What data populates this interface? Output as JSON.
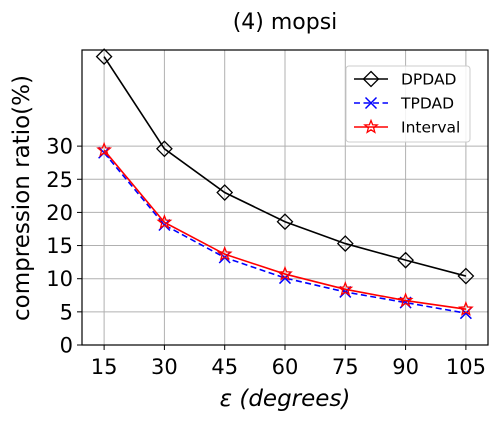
{
  "chart_data": {
    "type": "line",
    "title": "(4) mopsi",
    "xlabel": "ε (degrees)",
    "ylabel": "compression ratio(%)",
    "x": [
      15,
      30,
      45,
      60,
      75,
      90,
      105
    ],
    "xticks": [
      15,
      30,
      45,
      60,
      75,
      90,
      105
    ],
    "yticks": [
      0,
      5,
      10,
      15,
      20,
      25,
      30
    ],
    "xlim": [
      9.5,
      110.5
    ],
    "ylim": [
      0,
      44.5
    ],
    "grid": true,
    "legend_position": "top-right",
    "series": [
      {
        "name": "DPDAD",
        "values": [
          43.5,
          29.6,
          23.0,
          18.6,
          15.3,
          12.8,
          10.4
        ],
        "color": "#000000",
        "line_style": "solid",
        "marker": "diamond"
      },
      {
        "name": "TPDAD",
        "values": [
          29.0,
          18.1,
          13.2,
          10.1,
          8.0,
          6.4,
          4.8
        ],
        "color": "#0000ff",
        "line_style": "dashed",
        "marker": "x"
      },
      {
        "name": "Interval",
        "values": [
          29.4,
          18.5,
          13.7,
          10.7,
          8.4,
          6.7,
          5.4
        ],
        "color": "#ff0000",
        "line_style": "solid",
        "marker": "star"
      }
    ]
  }
}
